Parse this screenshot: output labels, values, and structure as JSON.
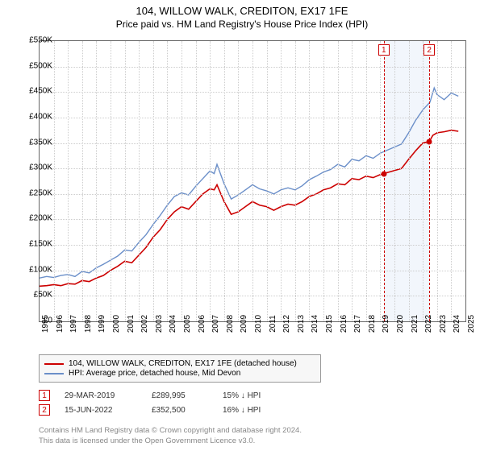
{
  "title": "104, WILLOW WALK, CREDITON, EX17 1FE",
  "subtitle": "Price paid vs. HM Land Registry's House Price Index (HPI)",
  "chart": {
    "type": "line",
    "background_color": "#ffffff",
    "grid_color": "#cccccc",
    "border_color": "#666666",
    "xlim": [
      1995,
      2025
    ],
    "ylim": [
      0,
      550000
    ],
    "ytick_step": 50000,
    "yticks": [
      "£0",
      "£50K",
      "£100K",
      "£150K",
      "£200K",
      "£250K",
      "£300K",
      "£350K",
      "£400K",
      "£450K",
      "£500K",
      "£550K"
    ],
    "xticks": [
      1995,
      1996,
      1997,
      1998,
      1999,
      2000,
      2001,
      2002,
      2003,
      2004,
      2005,
      2006,
      2007,
      2008,
      2009,
      2010,
      2011,
      2012,
      2013,
      2014,
      2015,
      2016,
      2017,
      2018,
      2019,
      2020,
      2021,
      2022,
      2023,
      2024,
      2025
    ],
    "label_fontsize": 10,
    "series": {
      "price_paid": {
        "color": "#cc0000",
        "line_width": 1.6,
        "data": [
          [
            1995,
            69000
          ],
          [
            1995.5,
            70000
          ],
          [
            1996,
            72000
          ],
          [
            1996.5,
            70000
          ],
          [
            1997,
            74000
          ],
          [
            1997.5,
            73000
          ],
          [
            1998,
            80000
          ],
          [
            1998.5,
            78000
          ],
          [
            1999,
            85000
          ],
          [
            1999.5,
            90000
          ],
          [
            2000,
            100000
          ],
          [
            2000.5,
            108000
          ],
          [
            2001,
            118000
          ],
          [
            2001.5,
            115000
          ],
          [
            2002,
            130000
          ],
          [
            2002.5,
            145000
          ],
          [
            2003,
            165000
          ],
          [
            2003.5,
            180000
          ],
          [
            2004,
            200000
          ],
          [
            2004.5,
            215000
          ],
          [
            2005,
            225000
          ],
          [
            2005.5,
            220000
          ],
          [
            2006,
            235000
          ],
          [
            2006.5,
            250000
          ],
          [
            2007,
            260000
          ],
          [
            2007.3,
            258000
          ],
          [
            2007.5,
            268000
          ],
          [
            2008,
            235000
          ],
          [
            2008.5,
            210000
          ],
          [
            2009,
            215000
          ],
          [
            2009.5,
            225000
          ],
          [
            2010,
            235000
          ],
          [
            2010.5,
            228000
          ],
          [
            2011,
            225000
          ],
          [
            2011.5,
            218000
          ],
          [
            2012,
            225000
          ],
          [
            2012.5,
            230000
          ],
          [
            2013,
            228000
          ],
          [
            2013.5,
            235000
          ],
          [
            2014,
            245000
          ],
          [
            2014.5,
            250000
          ],
          [
            2015,
            258000
          ],
          [
            2015.5,
            262000
          ],
          [
            2016,
            270000
          ],
          [
            2016.5,
            268000
          ],
          [
            2017,
            280000
          ],
          [
            2017.5,
            278000
          ],
          [
            2018,
            285000
          ],
          [
            2018.5,
            282000
          ],
          [
            2019,
            288000
          ],
          [
            2019.25,
            289995
          ],
          [
            2019.5,
            292000
          ],
          [
            2020,
            296000
          ],
          [
            2020.5,
            300000
          ],
          [
            2021,
            318000
          ],
          [
            2021.5,
            335000
          ],
          [
            2022,
            350000
          ],
          [
            2022.45,
            352500
          ],
          [
            2022.7,
            365000
          ],
          [
            2023,
            370000
          ],
          [
            2023.5,
            372000
          ],
          [
            2024,
            375000
          ],
          [
            2024.5,
            373000
          ]
        ]
      },
      "hpi": {
        "color": "#6b8fc9",
        "line_width": 1.4,
        "data": [
          [
            1995,
            85000
          ],
          [
            1995.5,
            88000
          ],
          [
            1996,
            86000
          ],
          [
            1996.5,
            90000
          ],
          [
            1997,
            92000
          ],
          [
            1997.5,
            88000
          ],
          [
            1998,
            98000
          ],
          [
            1998.5,
            95000
          ],
          [
            1999,
            105000
          ],
          [
            1999.5,
            112000
          ],
          [
            2000,
            120000
          ],
          [
            2000.5,
            128000
          ],
          [
            2001,
            140000
          ],
          [
            2001.5,
            138000
          ],
          [
            2002,
            155000
          ],
          [
            2002.5,
            170000
          ],
          [
            2003,
            190000
          ],
          [
            2003.5,
            208000
          ],
          [
            2004,
            228000
          ],
          [
            2004.5,
            245000
          ],
          [
            2005,
            252000
          ],
          [
            2005.5,
            248000
          ],
          [
            2006,
            265000
          ],
          [
            2006.5,
            280000
          ],
          [
            2007,
            295000
          ],
          [
            2007.3,
            290000
          ],
          [
            2007.5,
            308000
          ],
          [
            2008,
            270000
          ],
          [
            2008.5,
            240000
          ],
          [
            2009,
            248000
          ],
          [
            2009.5,
            258000
          ],
          [
            2010,
            268000
          ],
          [
            2010.5,
            260000
          ],
          [
            2011,
            256000
          ],
          [
            2011.5,
            250000
          ],
          [
            2012,
            258000
          ],
          [
            2012.5,
            262000
          ],
          [
            2013,
            258000
          ],
          [
            2013.5,
            266000
          ],
          [
            2014,
            278000
          ],
          [
            2014.5,
            285000
          ],
          [
            2015,
            293000
          ],
          [
            2015.5,
            298000
          ],
          [
            2016,
            308000
          ],
          [
            2016.5,
            303000
          ],
          [
            2017,
            318000
          ],
          [
            2017.5,
            315000
          ],
          [
            2018,
            325000
          ],
          [
            2018.5,
            320000
          ],
          [
            2019,
            330000
          ],
          [
            2019.5,
            336000
          ],
          [
            2020,
            342000
          ],
          [
            2020.5,
            348000
          ],
          [
            2021,
            370000
          ],
          [
            2021.5,
            395000
          ],
          [
            2022,
            415000
          ],
          [
            2022.5,
            430000
          ],
          [
            2022.8,
            458000
          ],
          [
            2023,
            445000
          ],
          [
            2023.5,
            435000
          ],
          [
            2024,
            448000
          ],
          [
            2024.5,
            442000
          ]
        ]
      }
    },
    "band": {
      "start": 2019.25,
      "end": 2022.45,
      "fill": "#e8effa",
      "opacity": 0.55
    },
    "markers": [
      {
        "x": 2019.25,
        "label": "1",
        "color": "#cc0000",
        "point_y": 289995
      },
      {
        "x": 2022.45,
        "label": "2",
        "color": "#cc0000",
        "point_y": 352500
      }
    ]
  },
  "legend": {
    "items": [
      {
        "color": "#cc0000",
        "text": "104, WILLOW WALK, CREDITON, EX17 1FE (detached house)"
      },
      {
        "color": "#6b8fc9",
        "text": "HPI: Average price, detached house, Mid Devon"
      }
    ]
  },
  "sales": [
    {
      "num": "1",
      "date": "29-MAR-2019",
      "price": "£289,995",
      "diff": "15% ↓ HPI",
      "color": "#cc0000"
    },
    {
      "num": "2",
      "date": "15-JUN-2022",
      "price": "£352,500",
      "diff": "16% ↓ HPI",
      "color": "#cc0000"
    }
  ],
  "footer": {
    "line1": "Contains HM Land Registry data © Crown copyright and database right 2024.",
    "line2": "This data is licensed under the Open Government Licence v3.0."
  }
}
